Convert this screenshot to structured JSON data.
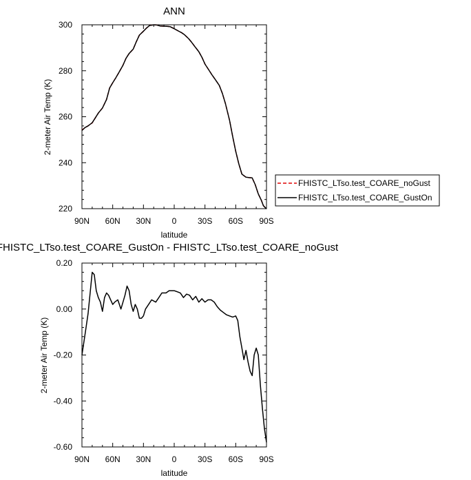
{
  "chart_data": [
    {
      "type": "line",
      "title": "ANN",
      "xlabel": "latitude",
      "ylabel": "2-meter Air Temp (K)",
      "xlim": [
        90,
        -90
      ],
      "ylim": [
        220,
        300
      ],
      "x_ticks": [
        90,
        60,
        30,
        0,
        -30,
        -60,
        -90
      ],
      "x_tick_labels": [
        "90N",
        "60N",
        "30N",
        "0",
        "30S",
        "60S",
        "90S"
      ],
      "y_ticks": [
        220,
        240,
        260,
        280,
        300
      ],
      "y_tick_labels": [
        "220",
        "240",
        "260",
        "280",
        "300"
      ],
      "legend_placement": "right",
      "grid": false,
      "series": [
        {
          "name": "FHISTC_LTso.test_COARE_noGust",
          "color": "#dd0000",
          "dash": "dashed",
          "x": [
            90,
            87,
            84,
            80,
            77,
            74,
            70,
            66,
            63,
            60,
            57,
            54,
            50,
            47,
            44,
            40,
            37,
            34,
            30,
            27,
            24,
            20,
            17,
            14,
            10,
            7,
            4,
            0,
            -4,
            -7,
            -10,
            -14,
            -17,
            -20,
            -24,
            -27,
            -30,
            -34,
            -37,
            -40,
            -44,
            -47,
            -50,
            -54,
            -57,
            -60,
            -63,
            -66,
            -70,
            -73,
            -76,
            -79,
            -82,
            -85,
            -87,
            -90
          ],
          "y": [
            254.2,
            255.3,
            256,
            257.3,
            259.5,
            261.6,
            263.8,
            267.5,
            272.5,
            274.8,
            276.9,
            279.2,
            282.4,
            285.4,
            287.5,
            289.4,
            292.6,
            295.5,
            297.2,
            298.6,
            299.7,
            300,
            299.9,
            299.5,
            299.4,
            299.3,
            299.2,
            298.3,
            297.3,
            296.6,
            295.7,
            294,
            292.4,
            290.6,
            288.3,
            285.9,
            282.9,
            280.2,
            278.1,
            276.2,
            273.6,
            270.1,
            265.7,
            258.4,
            251.4,
            245,
            239.5,
            235,
            233.7,
            233.5,
            233.4,
            230.5,
            226.4,
            223.6,
            221.3,
            219.9
          ]
        },
        {
          "name": "FHISTC_LTso.test_COARE_GustOn",
          "color": "#000000",
          "dash": "solid",
          "x": [
            90,
            87,
            84,
            80,
            77,
            74,
            70,
            66,
            63,
            60,
            57,
            54,
            50,
            47,
            44,
            40,
            37,
            34,
            30,
            27,
            24,
            20,
            17,
            14,
            10,
            7,
            4,
            0,
            -4,
            -7,
            -10,
            -14,
            -17,
            -20,
            -24,
            -27,
            -30,
            -34,
            -37,
            -40,
            -44,
            -47,
            -50,
            -54,
            -57,
            -60,
            -63,
            -66,
            -70,
            -73,
            -76,
            -79,
            -82,
            -85,
            -87,
            -90
          ],
          "y": [
            254.0,
            255.3,
            256.0,
            257.4,
            259.5,
            261.6,
            263.8,
            267.5,
            272.5,
            274.8,
            276.9,
            279.2,
            282.4,
            285.4,
            287.5,
            289.4,
            292.6,
            295.5,
            297.2,
            298.6,
            299.7,
            300.0,
            299.9,
            299.5,
            299.4,
            299.3,
            299.2,
            298.3,
            297.3,
            296.6,
            295.7,
            294.0,
            292.4,
            290.6,
            288.3,
            285.9,
            282.9,
            280.2,
            278.1,
            276.2,
            273.6,
            270.1,
            265.7,
            258.4,
            251.4,
            245.0,
            239.5,
            235.0,
            233.7,
            233.5,
            233.4,
            230.5,
            226.4,
            223.6,
            221.3,
            219.9
          ]
        }
      ]
    },
    {
      "type": "line",
      "title": "FHISTC_LTso.test_COARE_GustOn - FHISTC_LTso.test_COARE_noGust",
      "xlabel": "latitude",
      "ylabel": "2-meter Air Temp (K)",
      "xlim": [
        90,
        -90
      ],
      "ylim": [
        -0.6,
        0.2
      ],
      "x_ticks": [
        90,
        60,
        30,
        0,
        -30,
        -60,
        -90
      ],
      "x_tick_labels": [
        "90N",
        "60N",
        "30N",
        "0",
        "30S",
        "60S",
        "90S"
      ],
      "y_ticks": [
        0.2,
        0.0,
        -0.2,
        -0.4,
        -0.6
      ],
      "y_tick_labels": [
        "0.20",
        "0.00",
        "-0.20",
        "-0.40",
        "-0.60"
      ],
      "grid": false,
      "series": [
        {
          "color": "#000000",
          "dash": "solid",
          "x": [
            90,
            88,
            86,
            84,
            82,
            80,
            78,
            76,
            74,
            72,
            70,
            68,
            66,
            64,
            62,
            60,
            58,
            55,
            52,
            50,
            48,
            46,
            44,
            42,
            40,
            38,
            36,
            34,
            32,
            30,
            28,
            25,
            22,
            18,
            15,
            12,
            8,
            5,
            2,
            0,
            -3,
            -6,
            -9,
            -12,
            -15,
            -18,
            -21,
            -24,
            -27,
            -30,
            -33,
            -36,
            -39,
            -42,
            -45,
            -48,
            -51,
            -54,
            -57,
            -60,
            -62,
            -64,
            -66,
            -68,
            -70,
            -72,
            -74,
            -76,
            -78,
            -80,
            -82,
            -84,
            -86,
            -88,
            -90
          ],
          "y": [
            -0.2,
            -0.14,
            -0.08,
            -0.02,
            0.07,
            0.16,
            0.15,
            0.08,
            0.05,
            0.03,
            -0.01,
            0.05,
            0.07,
            0.06,
            0.04,
            0.02,
            0.03,
            0.04,
            0.0,
            0.03,
            0.06,
            0.1,
            0.08,
            0.02,
            -0.01,
            0.02,
            0.0,
            -0.04,
            -0.04,
            -0.03,
            0.0,
            0.02,
            0.04,
            0.03,
            0.05,
            0.07,
            0.07,
            0.08,
            0.08,
            0.08,
            0.075,
            0.07,
            0.05,
            0.065,
            0.06,
            0.04,
            0.055,
            0.03,
            0.045,
            0.03,
            0.04,
            0.04,
            0.03,
            0.01,
            -0.005,
            -0.015,
            -0.025,
            -0.03,
            -0.035,
            -0.03,
            -0.05,
            -0.12,
            -0.17,
            -0.22,
            -0.18,
            -0.23,
            -0.27,
            -0.29,
            -0.2,
            -0.17,
            -0.2,
            -0.33,
            -0.43,
            -0.52,
            -0.58
          ]
        }
      ]
    }
  ],
  "legend": {
    "items": [
      {
        "label": "FHISTC_LTso.test_COARE_noGust",
        "color": "#dd0000",
        "dash": "dashed"
      },
      {
        "label": "FHISTC_LTso.test_COARE_GustOn",
        "color": "#000000",
        "dash": "solid"
      }
    ]
  }
}
